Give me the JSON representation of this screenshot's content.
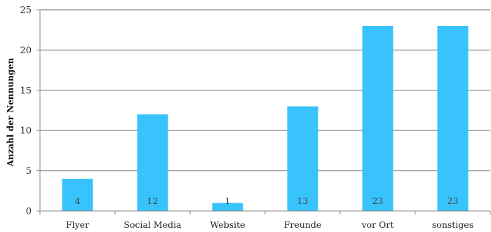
{
  "chart_data": {
    "type": "bar",
    "title": "",
    "xlabel": "",
    "ylabel": "Anzahl der Nennungen",
    "categories": [
      "Flyer",
      "Social Media",
      "Website",
      "Freunde",
      "vor Ort",
      "sonstiges"
    ],
    "values": [
      4,
      12,
      1,
      13,
      23,
      23
    ],
    "data_labels": [
      "4",
      "12",
      "1",
      "13",
      "23",
      "23"
    ],
    "ylim": [
      0,
      25
    ],
    "yticks": [
      0,
      5,
      10,
      15,
      20,
      25
    ],
    "grid": true,
    "legend": "none",
    "colors": {
      "bar": "#38c3fc",
      "grid": "#9a9a9a",
      "axis": "#888888"
    }
  }
}
